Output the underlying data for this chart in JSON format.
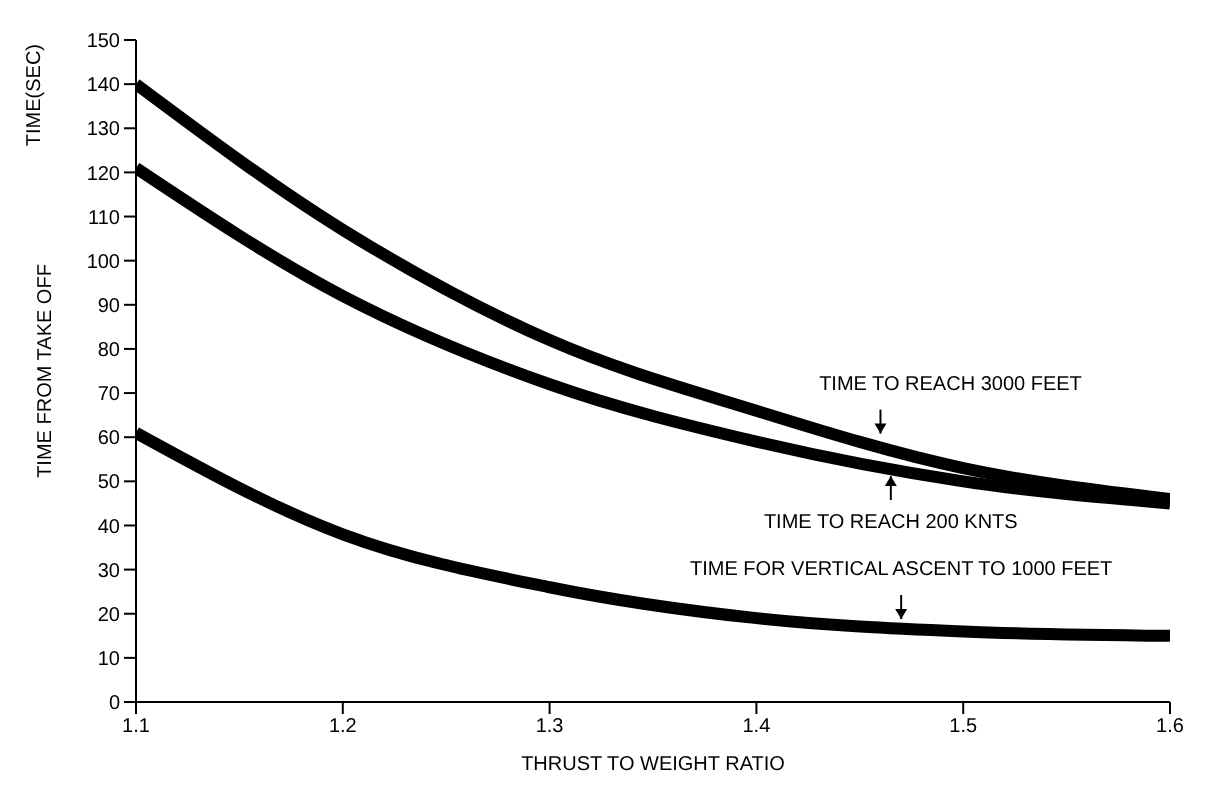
{
  "chart_data": {
    "type": "line",
    "xlabel": "THRUST TO WEIGHT RATIO",
    "ylabel": "TIME FROM TAKE OFF",
    "x": [
      1.1,
      1.2,
      1.3,
      1.4,
      1.5,
      1.6
    ],
    "series": [
      {
        "color": "#000000",
        "values": [
          140,
          107,
          82,
          66,
          53,
          46
        ]
      },
      {
        "color": "#000000",
        "values": [
          121,
          92,
          72,
          59,
          50,
          45
        ]
      },
      {
        "color": "#000000",
        "values": [
          61,
          38,
          26,
          19,
          16,
          15
        ]
      }
    ],
    "xlim": [
      1.1,
      1.6
    ],
    "xticks": [
      1.1,
      1.2,
      1.3,
      1.4,
      1.5,
      1.6
    ],
    "ylim": [
      0,
      150
    ],
    "yticks": [
      0,
      10,
      20,
      30,
      40,
      50,
      60,
      70,
      80,
      90,
      100,
      110,
      120,
      130,
      140,
      150
    ],
    "marker": "none",
    "line_style": "solid",
    "annotations": [
      "TIME(SEC)",
      {
        "text": "TIME TO REACH 3000 FEET",
        "x": 1.46,
        "y": 59
      },
      {
        "text": "TIME TO REACH 200 KNTS",
        "x": 1.465,
        "y": 53
      },
      {
        "text": "TIME FOR VERTICAL ASCENT TO 1000 FEET",
        "x": 1.47,
        "y": 17
      }
    ]
  }
}
